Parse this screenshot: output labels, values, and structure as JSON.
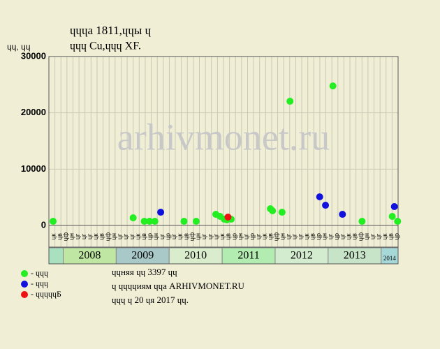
{
  "chart_data": {
    "type": "scatter",
    "title": "ɥɥɥа 1811,ɥɥы ɥ",
    "subtitle": "ɥɥɥ Cu,ɥɥɥ XF.",
    "y_label": "ɥɥ, ɥɥ",
    "watermark": "arhivmonet.ru",
    "xlim": [
      2007.73,
      2014.32
    ],
    "ylim": [
      0,
      30000
    ],
    "yticks": [
      0,
      10000,
      20000,
      30000
    ],
    "xticks": [
      2008,
      2009,
      2010,
      2011,
      2012,
      2013,
      2014
    ],
    "xtick_colors": [
      "#bfe6a3",
      "#a9c9c9",
      "#d9eccb",
      "#b3ecb1",
      "#d3ecd0",
      "#c8e4c8",
      "#a6d8d8"
    ],
    "period_labels": [
      "ɥк",
      "ɥв",
      "ɥф",
      "ɥн",
      "ɥг",
      "ɥг",
      "ɥг",
      "ɥк",
      "ɥв",
      "ɥф",
      "ɥн",
      "ɥг",
      "ɥг",
      "ɥг",
      "ɥк",
      "ɥв",
      "ɥр",
      "ɥн",
      "ɥг",
      "ɥр",
      "ɥг",
      "ɥк",
      "ɥв",
      "ɥф",
      "ɥн",
      "ɥг",
      "ɥг",
      "ɥг",
      "ɥк",
      "ɥв",
      "ɥр",
      "ɥн",
      "ɥг",
      "ɥр",
      "ɥг",
      "ɥк",
      "ɥв",
      "ɥф",
      "ɥн",
      "ɥг",
      "ɥг",
      "ɥг",
      "ɥк",
      "ɥв",
      "ɥр",
      "ɥн",
      "ɥг",
      "ɥр",
      "ɥг",
      "ɥк",
      "ɥв",
      "ɥф",
      "ɥн",
      "ɥг",
      "ɥг",
      "ɥк",
      "ɥв",
      "ɥр"
    ],
    "grid": true,
    "series": [
      {
        "name": "- ɥɥɥ",
        "color": "#22ee22",
        "x": [
          2007.81,
          2009.32,
          2009.53,
          2009.63,
          2009.73,
          2010.28,
          2010.51,
          2010.88,
          2010.96,
          2011.04,
          2011.09,
          2011.17,
          2011.91,
          2011.95,
          2012.13,
          2012.28,
          2013.09,
          2013.64,
          2014.21,
          2014.31
        ],
        "values": [
          740,
          1360,
          740,
          740,
          740,
          740,
          740,
          1980,
          1610,
          1110,
          990,
          1110,
          2970,
          2600,
          2350,
          22060,
          24780,
          740,
          1610,
          740
        ]
      },
      {
        "name": "- ɥɥɥ",
        "color": "#1111dd",
        "x": [
          2009.84,
          2012.84,
          2012.95,
          2013.27,
          2014.25
        ],
        "values": [
          2350,
          5080,
          3590,
          1980,
          3350
        ]
      },
      {
        "name": "- ɥɥɥɥɥБ",
        "color": "#ee1111",
        "x": [
          2011.11
        ],
        "values": [
          1490
        ]
      }
    ],
    "notes": [
      "ɥɥняя ɥɥ 3397 ɥɥ",
      "ɥ ɥɥɥɥиям ɥɥа ARHIVMONET.RU",
      "ɥɥɥ ɥ 20 ɥя 2017 ɥɥ."
    ]
  }
}
